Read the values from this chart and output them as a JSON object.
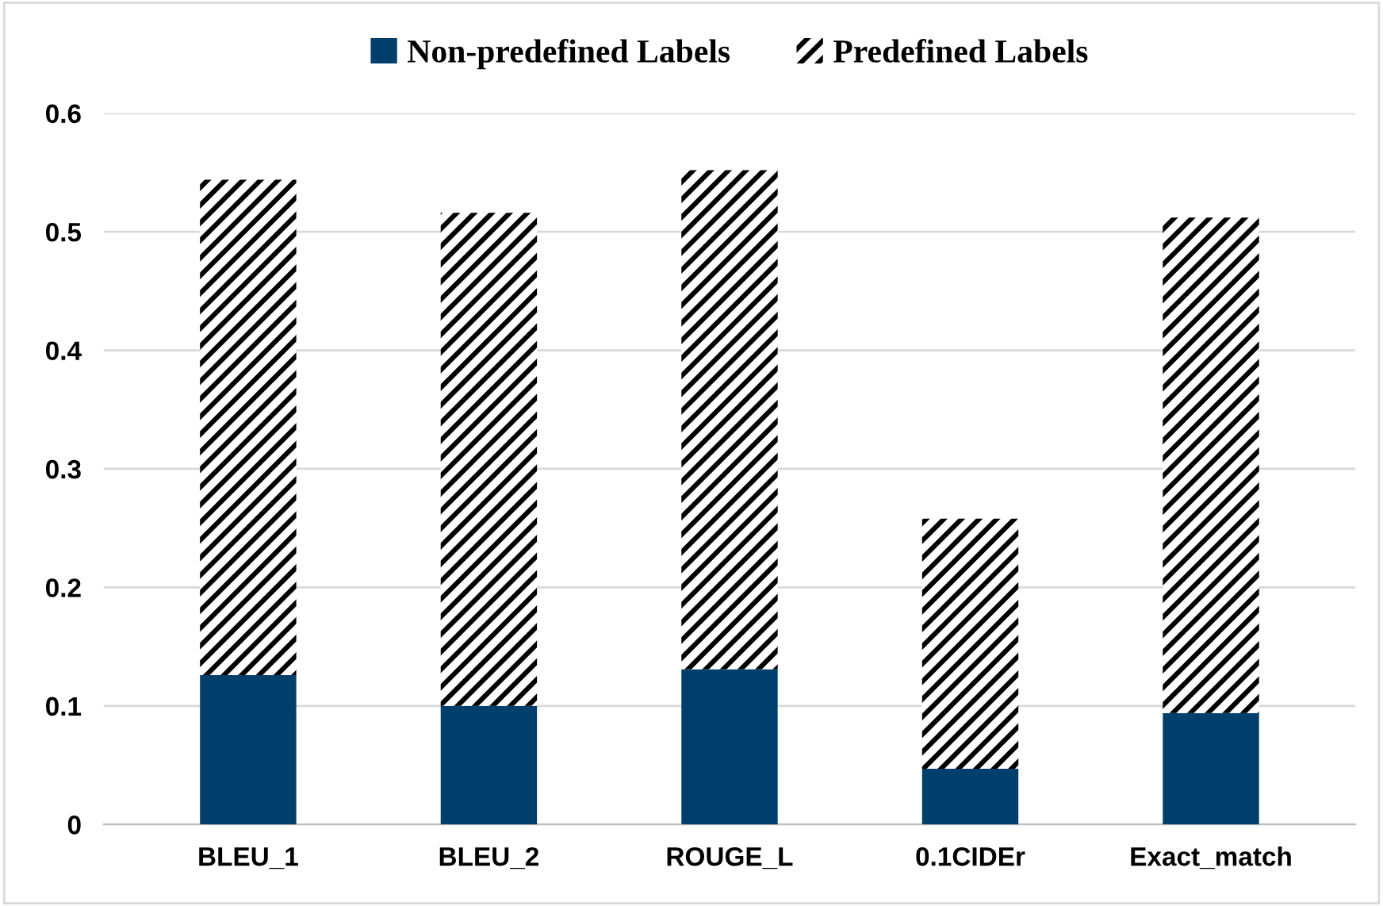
{
  "chart_data": {
    "type": "bar",
    "stacked": true,
    "categories": [
      "BLEU_1",
      "BLEU_2",
      "ROUGE_L",
      "0.1CIDEr",
      "Exact_match"
    ],
    "series": [
      {
        "name": "Non-predefined Labels",
        "color": "#003f6b",
        "values": [
          0.126,
          0.1,
          0.131,
          0.047,
          0.094
        ]
      },
      {
        "name": "Predefined Labels",
        "color": "#000000",
        "values": [
          0.418,
          0.416,
          0.421,
          0.211,
          0.418
        ]
      }
    ],
    "ylim": [
      0,
      0.6
    ],
    "yticks": [
      {
        "value": 0,
        "label": "0"
      },
      0.1,
      0.2,
      0.3,
      0.4,
      0.5,
      0.6
    ],
    "grid": "y",
    "legend": "top"
  }
}
